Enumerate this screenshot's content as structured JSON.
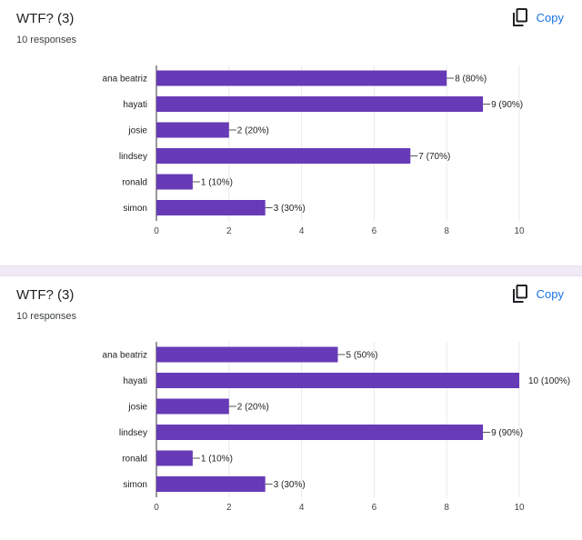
{
  "cards": [
    {
      "title": "WTF? (3)",
      "subtitle": "10 responses",
      "copy_label": "Copy"
    },
    {
      "title": "WTF? (3)",
      "subtitle": "10 responses",
      "copy_label": "Copy"
    }
  ],
  "icons": {
    "copy": "copy-icon"
  },
  "colors": {
    "bar": "#673ab7",
    "copy_link": "#1a73e8",
    "divider": "#efeaf6"
  },
  "chart_data": [
    {
      "type": "bar",
      "orientation": "horizontal",
      "categories": [
        "ana beatriz",
        "hayati",
        "josie",
        "lindsey",
        "ronald",
        "simon"
      ],
      "values": [
        8,
        9,
        2,
        7,
        1,
        3
      ],
      "data_labels": [
        "8 (80%)",
        "9 (90%)",
        "2 (20%)",
        "7 (70%)",
        "1 (10%)",
        "3 (30%)"
      ],
      "xlim": [
        0,
        10
      ],
      "xticks": [
        0,
        2,
        4,
        6,
        8,
        10
      ],
      "grid": true
    },
    {
      "type": "bar",
      "orientation": "horizontal",
      "categories": [
        "ana beatriz",
        "hayati",
        "josie",
        "lindsey",
        "ronald",
        "simon"
      ],
      "values": [
        5,
        10,
        2,
        9,
        1,
        3
      ],
      "data_labels": [
        "5 (50%)",
        "10 (100%)",
        "2 (20%)",
        "9 (90%)",
        "1 (10%)",
        "3 (30%)"
      ],
      "xlim": [
        0,
        10
      ],
      "xticks": [
        0,
        2,
        4,
        6,
        8,
        10
      ],
      "grid": true
    }
  ]
}
